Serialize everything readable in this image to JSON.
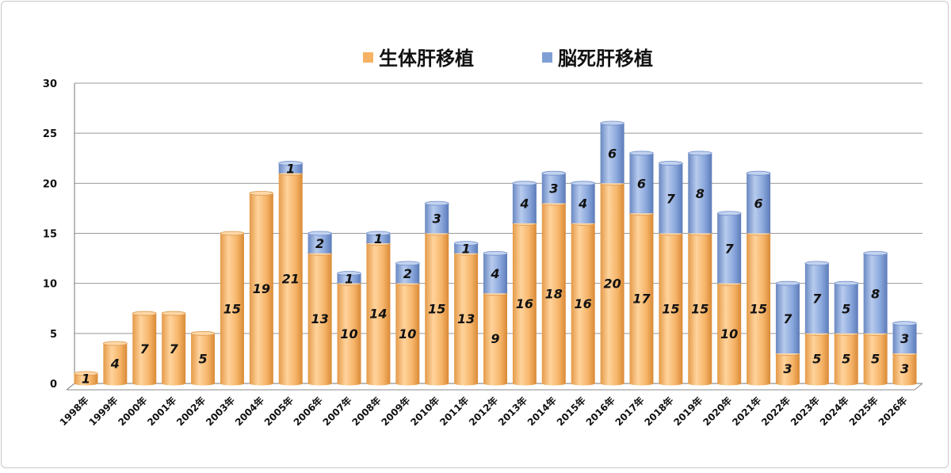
{
  "chart_data": {
    "type": "bar",
    "stacked": true,
    "categories": [
      "1998年",
      "1999年",
      "2000年",
      "2001年",
      "2002年",
      "2003年",
      "2004年",
      "2005年",
      "2006年",
      "2007年",
      "2008年",
      "2009年",
      "2010年",
      "2011年",
      "2012年",
      "2013年",
      "2014年",
      "2015年",
      "2016年",
      "2017年",
      "2018年",
      "2019年",
      "2020年",
      "2021年",
      "2022年",
      "2023年",
      "2024年",
      "2025年",
      "2026年"
    ],
    "series": [
      {
        "name": "生体肝移植",
        "color": "#f5b264",
        "values": [
          1,
          4,
          7,
          7,
          5,
          15,
          19,
          21,
          13,
          10,
          14,
          10,
          15,
          13,
          9,
          16,
          18,
          16,
          20,
          17,
          15,
          15,
          10,
          15,
          3,
          5,
          5,
          5,
          3
        ]
      },
      {
        "name": "脳死肝移植",
        "color": "#7f9fd5",
        "values": [
          0,
          0,
          0,
          0,
          0,
          0,
          0,
          1,
          2,
          1,
          1,
          2,
          3,
          1,
          4,
          4,
          3,
          4,
          6,
          6,
          7,
          8,
          7,
          6,
          7,
          7,
          5,
          8,
          3
        ]
      }
    ],
    "yticks": [
      0,
      5,
      10,
      15,
      20,
      25,
      30
    ],
    "ylim": [
      0,
      30
    ],
    "legend_position": "top-center",
    "grid": true,
    "title": "",
    "xlabel": "",
    "ylabel": ""
  }
}
